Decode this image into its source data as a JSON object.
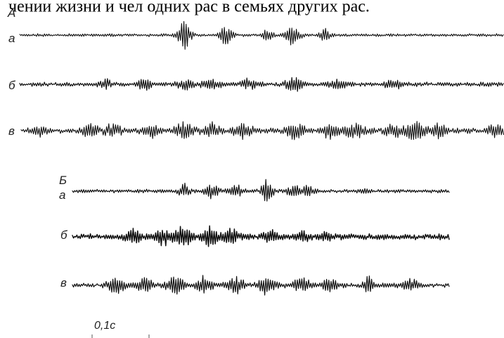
{
  "header_text": "чении жизни и чел одних рас в семьях других рас.",
  "panels": [
    {
      "label": "А",
      "traces": [
        {
          "label": "а"
        },
        {
          "label": "б"
        },
        {
          "label": "в"
        }
      ]
    },
    {
      "label": "Б",
      "traces": [
        {
          "label": "а"
        },
        {
          "label": "б"
        },
        {
          "label": "в"
        }
      ]
    }
  ],
  "time_scale": "0,1с",
  "colors": {
    "ink": "#111111",
    "background": "#ffffff"
  }
}
